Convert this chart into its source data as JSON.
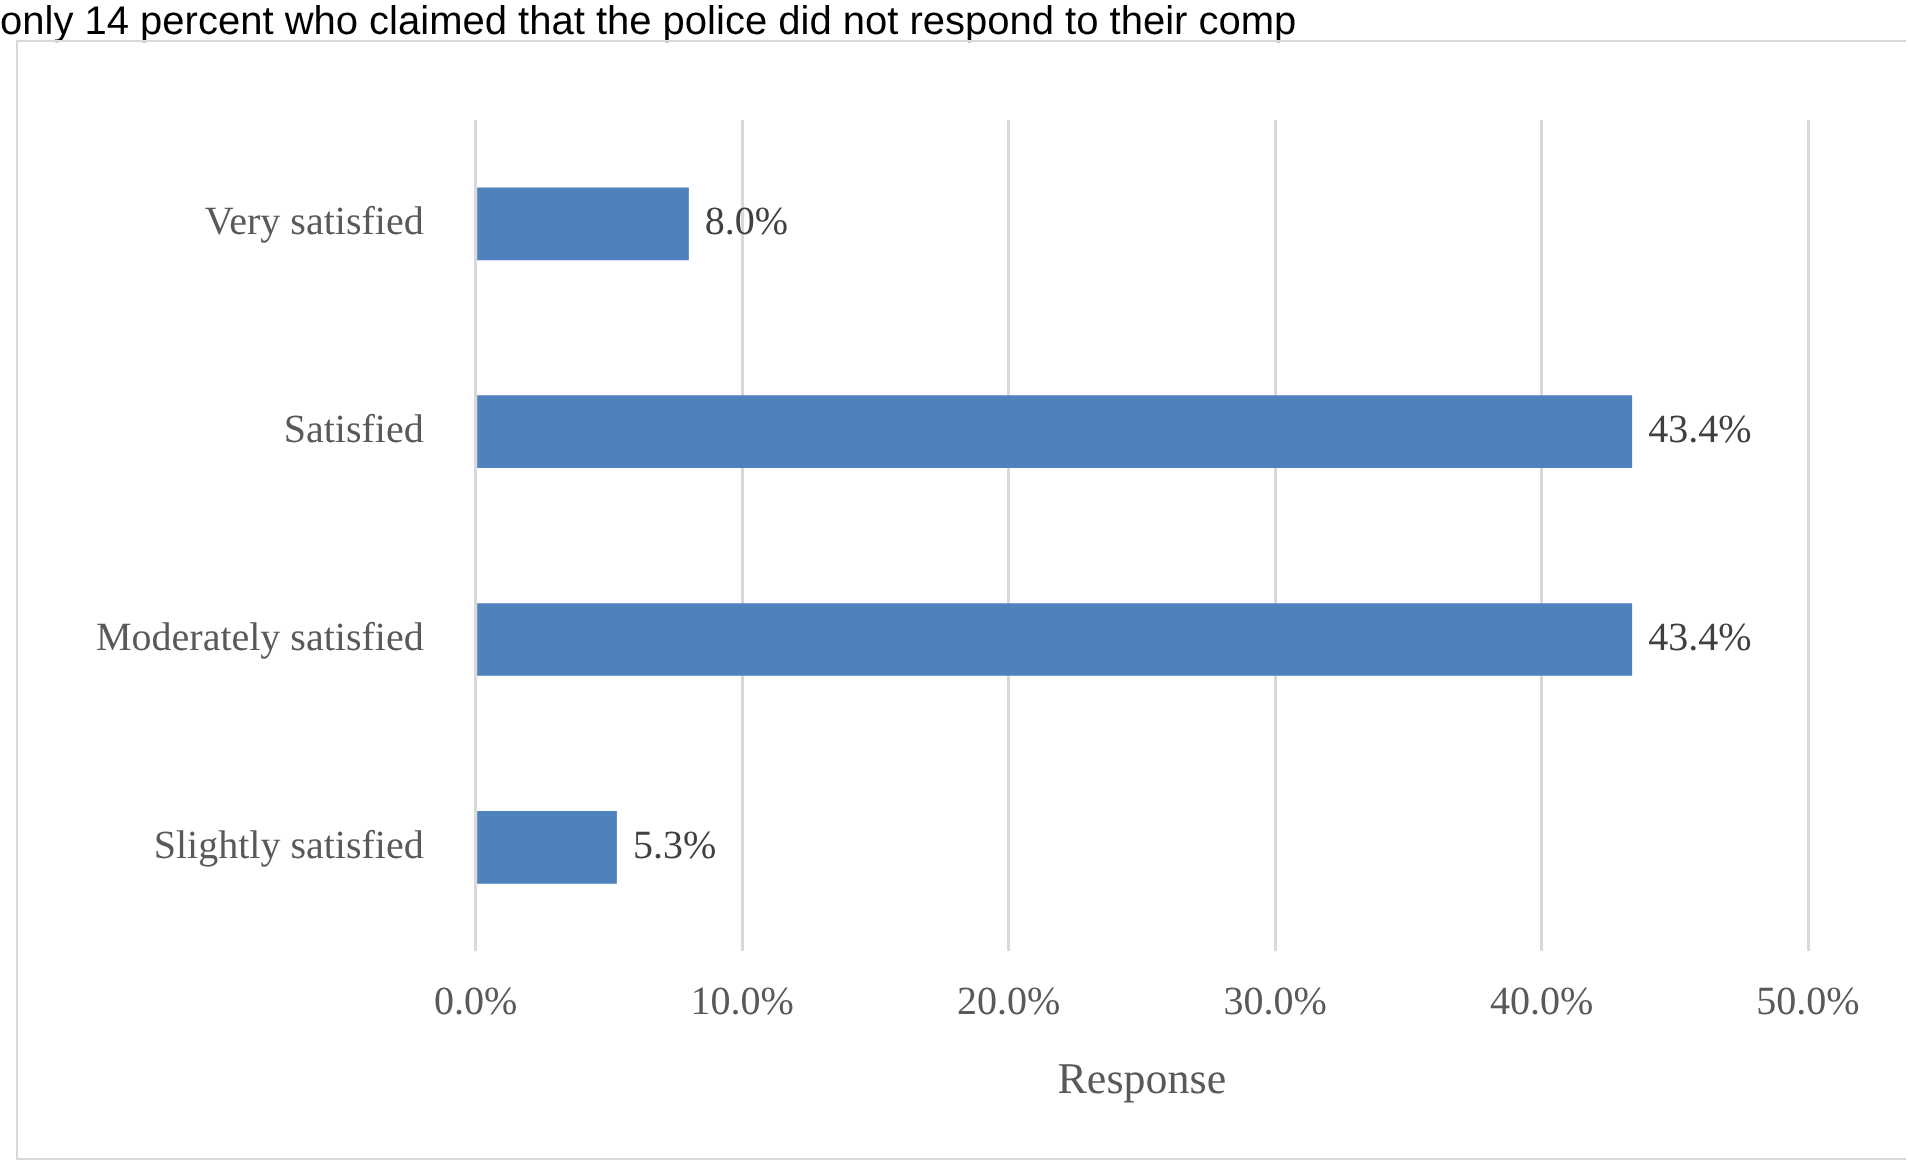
{
  "chart_data": {
    "type": "bar",
    "orientation": "horizontal",
    "xlabel": "Response",
    "annotations": [
      "only 14 percent who claimed that the police did not respond to their comp"
    ],
    "categories": [
      "Very satisfied",
      "Satisfied",
      "Moderately satisfied",
      "Slightly satisfied"
    ],
    "values": [
      8.0,
      43.4,
      43.4,
      5.3
    ],
    "value_labels": [
      "8.0%",
      "43.4%",
      "43.4%",
      "5.3%"
    ],
    "color": "#4f81bd",
    "xlim": [
      0,
      50
    ],
    "xticks": [
      {
        "value": 0,
        "label": "0.0%"
      },
      {
        "value": 10,
        "label": "10.0%"
      },
      {
        "value": 20,
        "label": "20.0%"
      },
      {
        "value": 30,
        "label": "30.0%"
      },
      {
        "value": 40,
        "label": "40.0%"
      },
      {
        "value": 50,
        "label": "50.0%"
      }
    ],
    "grid": "x",
    "legend": false
  }
}
